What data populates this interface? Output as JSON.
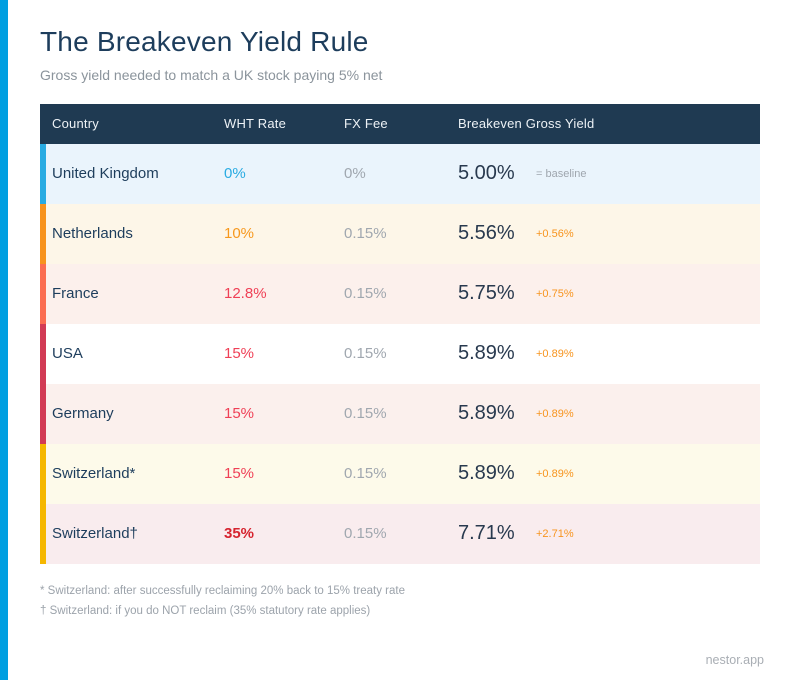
{
  "page": {
    "title": "The Breakeven Yield Rule",
    "subtitle": "Gross yield needed to match a UK stock paying 5% net",
    "brand": "nestor.app",
    "accent_stripe_color": "#009FE1"
  },
  "chart_data": {
    "type": "table",
    "title": "The Breakeven Yield Rule",
    "subtitle": "Gross yield needed to match a UK stock paying 5% net",
    "columns": [
      "Country",
      "WHT Rate",
      "FX Fee",
      "Breakeven Gross Yield"
    ],
    "rows": [
      {
        "country": "United Kingdom",
        "wht_rate": "0%",
        "fx_fee": "0%",
        "breakeven_gross_yield": "5.00%",
        "note": "= baseline"
      },
      {
        "country": "Netherlands",
        "wht_rate": "10%",
        "fx_fee": "0.15%",
        "breakeven_gross_yield": "5.56%",
        "note": "+0.56%"
      },
      {
        "country": "France",
        "wht_rate": "12.8%",
        "fx_fee": "0.15%",
        "breakeven_gross_yield": "5.75%",
        "note": "+0.75%"
      },
      {
        "country": "USA",
        "wht_rate": "15%",
        "fx_fee": "0.15%",
        "breakeven_gross_yield": "5.89%",
        "note": "+0.89%"
      },
      {
        "country": "Germany",
        "wht_rate": "15%",
        "fx_fee": "0.15%",
        "breakeven_gross_yield": "5.89%",
        "note": "+0.89%"
      },
      {
        "country": "Switzerland*",
        "wht_rate": "15%",
        "fx_fee": "0.15%",
        "breakeven_gross_yield": "5.89%",
        "note": "+0.89%"
      },
      {
        "country": "Switzerland†",
        "wht_rate": "35%",
        "fx_fee": "0.15%",
        "breakeven_gross_yield": "7.71%",
        "note": "+2.71%"
      }
    ]
  },
  "table_style": {
    "header_bg": "#1F3A52",
    "rows": [
      {
        "accent": "#29ABE2",
        "bg": "#EAF4FC",
        "wht_color": "#29ABE2",
        "wht_bold": false,
        "note_color": "#9FA6AE"
      },
      {
        "accent": "#F7931E",
        "bg": "#FDF6E8",
        "wht_color": "#F7981D",
        "wht_bold": false,
        "note_color": "#F7941E"
      },
      {
        "accent": "#FB6D51",
        "bg": "#FCF0EC",
        "wht_color": "#EF4056",
        "wht_bold": false,
        "note_color": "#F7941E"
      },
      {
        "accent": "#D23B55",
        "bg": "#FFFFFF",
        "wht_color": "#EF4056",
        "wht_bold": false,
        "note_color": "#F7941E"
      },
      {
        "accent": "#D23B55",
        "bg": "#FBF0ED",
        "wht_color": "#EF4056",
        "wht_bold": false,
        "note_color": "#F7941E"
      },
      {
        "accent": "#F5B700",
        "bg": "#FDFAEA",
        "wht_color": "#EF4056",
        "wht_bold": false,
        "note_color": "#F7941E"
      },
      {
        "accent": "#F5B700",
        "bg": "#F9ECEE",
        "wht_color": "#D6232E",
        "wht_bold": true,
        "note_color": "#F7941E"
      }
    ]
  },
  "footnotes": [
    "* Switzerland: after successfully reclaiming 20% back to 15% treaty rate",
    "† Switzerland: if you do NOT reclaim (35% statutory rate applies)"
  ]
}
